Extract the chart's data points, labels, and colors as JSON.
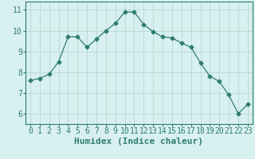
{
  "x": [
    0,
    1,
    2,
    3,
    4,
    5,
    6,
    7,
    8,
    9,
    10,
    11,
    12,
    13,
    14,
    15,
    16,
    17,
    18,
    19,
    20,
    21,
    22,
    23
  ],
  "y": [
    7.6,
    7.7,
    7.9,
    8.5,
    9.7,
    9.7,
    9.2,
    9.6,
    10.0,
    10.35,
    10.9,
    10.9,
    10.3,
    9.95,
    9.7,
    9.65,
    9.4,
    9.2,
    8.45,
    7.8,
    7.55,
    6.9,
    6.0,
    6.45
  ],
  "line_color": "#2e7d6e",
  "marker": "D",
  "marker_size": 2.5,
  "bg_color": "#d8f0f0",
  "grid_color": "#b8d8d4",
  "xlabel": "Humidex (Indice chaleur)",
  "xlabel_fontsize": 8,
  "tick_fontsize": 7,
  "ylim": [
    5.5,
    11.4
  ],
  "xlim": [
    -0.5,
    23.5
  ],
  "yticks": [
    6,
    7,
    8,
    9,
    10,
    11
  ],
  "xticks": [
    0,
    1,
    2,
    3,
    4,
    5,
    6,
    7,
    8,
    9,
    10,
    11,
    12,
    13,
    14,
    15,
    16,
    17,
    18,
    19,
    20,
    21,
    22,
    23
  ]
}
